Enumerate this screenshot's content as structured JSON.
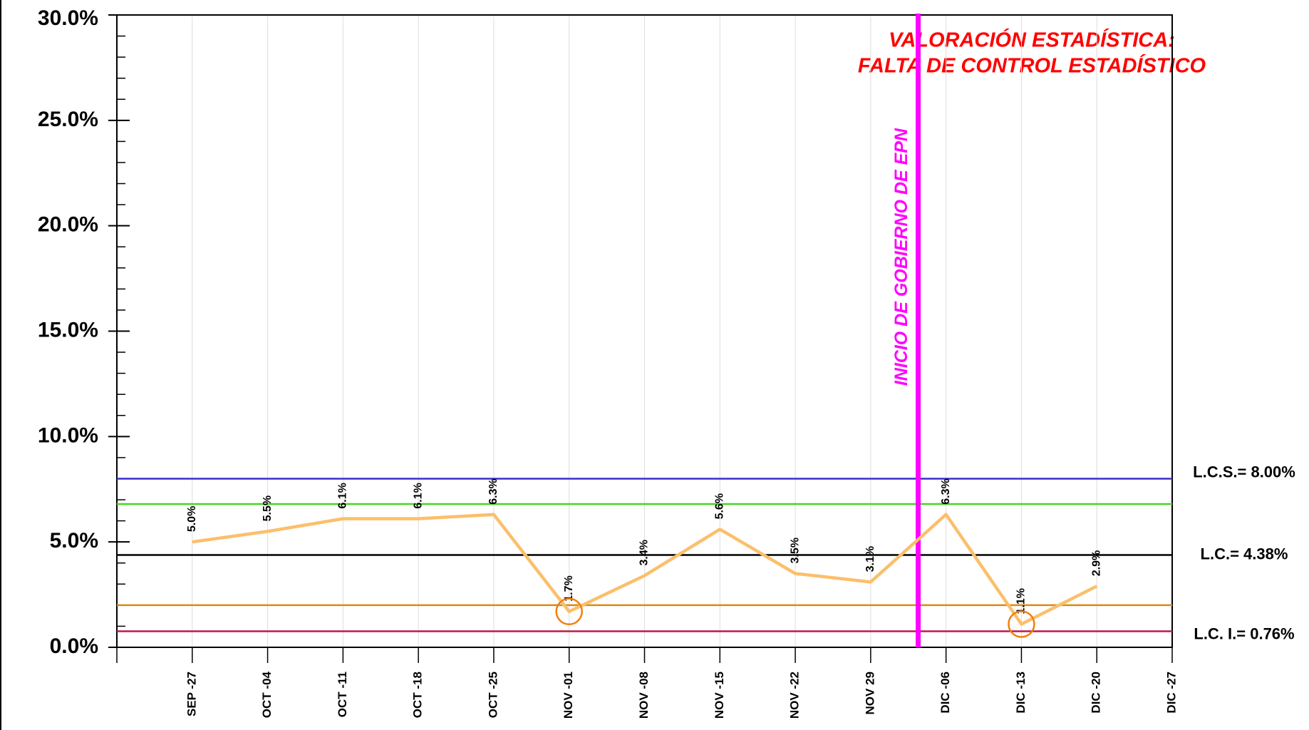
{
  "chart_data": {
    "type": "line",
    "categories": [
      "SEP -27",
      "OCT -04",
      "OCT -11",
      "OCT -18",
      "OCT -25",
      "NOV -01",
      "NOV -08",
      "NOV -15",
      "NOV -22",
      "NOV 29",
      "DIC -06",
      "DIC -13",
      "DIC -20",
      "DIC -27"
    ],
    "series": [
      {
        "color": "#fbbf6b",
        "values": [
          5.0,
          5.5,
          6.1,
          6.1,
          6.3,
          1.7,
          3.4,
          5.6,
          3.5,
          3.1,
          6.3,
          1.1,
          2.9,
          null
        ],
        "value_labels": [
          "5.0%",
          "5.5%",
          "6.1%",
          "6.1%",
          "6.3%",
          "1.7%",
          "3.4%",
          "5.6%",
          "3.5%",
          "3.1%",
          "6.3%",
          "1.1%",
          "2.9%",
          null
        ]
      }
    ],
    "ylim": [
      0,
      30
    ],
    "yticks": [
      {
        "value": 0,
        "label": "0.0%"
      },
      {
        "value": 5,
        "label": "5.0%"
      },
      {
        "value": 10,
        "label": "10.0%"
      },
      {
        "value": 15,
        "label": "15.0%"
      },
      {
        "value": 20,
        "label": "20.0%"
      },
      {
        "value": 25,
        "label": "25.0%"
      },
      {
        "value": 30,
        "label": "30.0%"
      }
    ],
    "reference_lines": [
      {
        "value": 8.0,
        "color": "#3a2fc8",
        "label": "L.C.S.= 8.00%"
      },
      {
        "value": 6.8,
        "color": "#44d91e"
      },
      {
        "value": 4.38,
        "color": "#000000",
        "label": "L.C.= 4.38%"
      },
      {
        "value": 2.0,
        "color": "#d88c10"
      },
      {
        "value": 0.76,
        "color": "#c0174f",
        "label": "L.C. I.= 0.76%"
      }
    ],
    "highlight": [
      5,
      11
    ],
    "highlight_color": "#f08010",
    "event": {
      "x": 9.63,
      "label": "INICIO DE GOBIERNO DE EPN",
      "color": "#ff00ff"
    },
    "annotations": [
      "VALORACIÓN ESTADÍSTICA:",
      "FALTA DE CONTROL ESTADÍSTICO"
    ],
    "annotation_color": "#ff0000",
    "grid": true
  }
}
